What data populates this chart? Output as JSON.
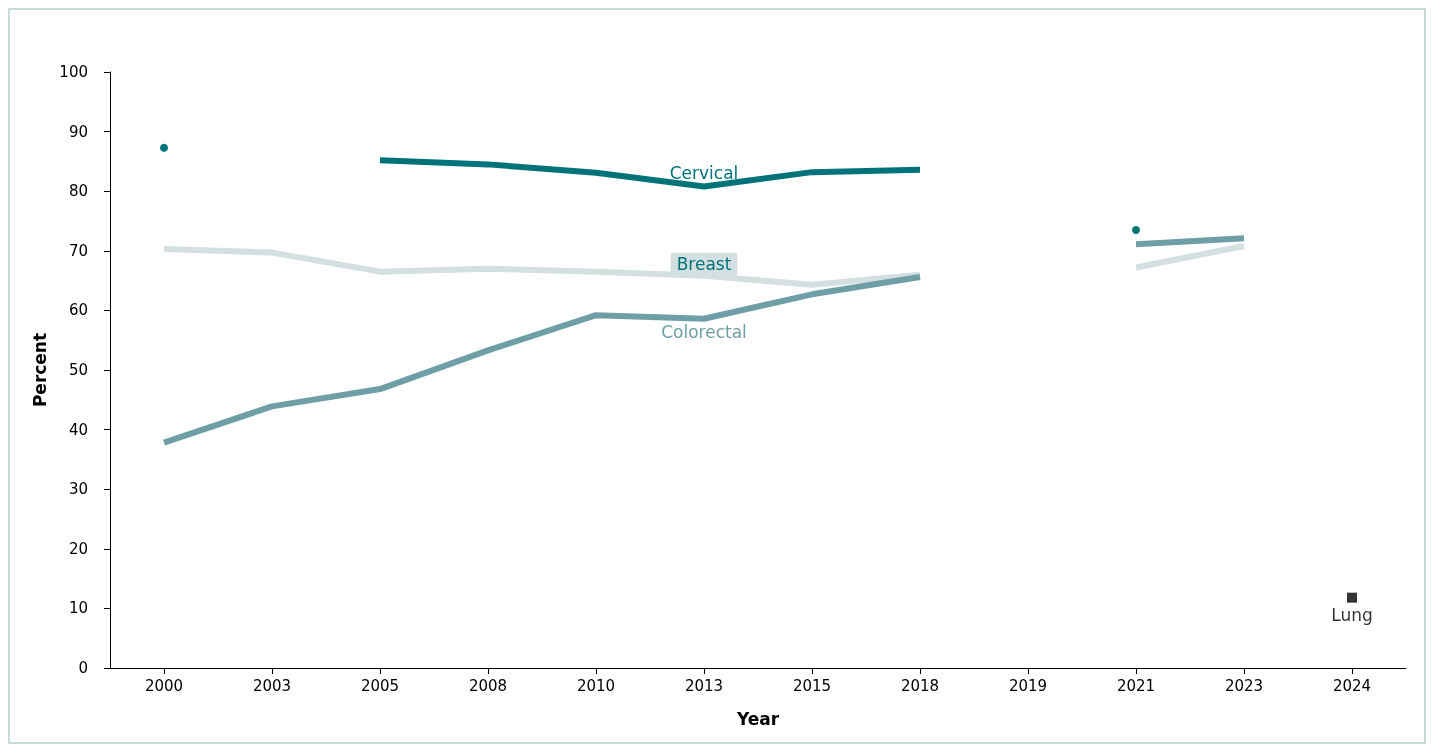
{
  "chart_data": {
    "type": "line",
    "xlabel": "Year",
    "ylabel": "Percent",
    "categories": [
      "2000",
      "2003",
      "2005",
      "2008",
      "2010",
      "2013",
      "2015",
      "2018",
      "2019",
      "2021",
      "2023",
      "2024"
    ],
    "series": [
      {
        "name": "Cervical",
        "color": "#00727a",
        "values": [
          87.3,
          null,
          85.2,
          84.5,
          83.1,
          80.8,
          83.2,
          83.6,
          null,
          73.5,
          null,
          null
        ]
      },
      {
        "name": "Breast",
        "color": "#d3dfe1",
        "values": [
          70.3,
          69.7,
          66.5,
          67.0,
          66.5,
          65.8,
          64.3,
          66.0,
          null,
          67.2,
          70.8,
          null
        ]
      },
      {
        "name": "Colorectal",
        "color": "#6e9fa6",
        "values": [
          37.8,
          43.9,
          46.8,
          53.3,
          59.2,
          58.6,
          62.7,
          65.6,
          null,
          71.1,
          72.1,
          null
        ]
      },
      {
        "name": "Lung",
        "color": "#000000",
        "type": "scatter",
        "marker": "square",
        "values": [
          null,
          null,
          null,
          null,
          null,
          null,
          null,
          null,
          null,
          null,
          null,
          11.8
        ]
      }
    ],
    "ylim": [
      0,
      100
    ],
    "yticks": [
      0,
      10,
      20,
      30,
      40,
      50,
      60,
      70,
      80,
      90,
      100
    ],
    "grid": false,
    "legend": false,
    "marker": "none",
    "line_style": "solid"
  }
}
